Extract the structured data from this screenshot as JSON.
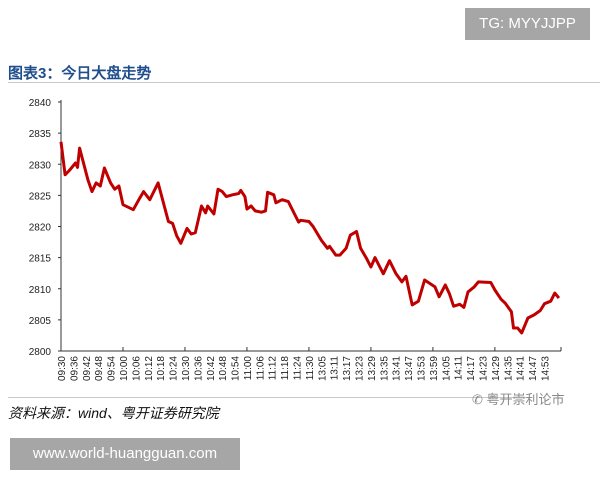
{
  "badge_top": "TG: MYYJJPP",
  "badge_bottom": "www.world-huangguan.com",
  "source": "资料来源：wind、粤开证券研究院",
  "watermark": "粤开崇利论市",
  "watermark_icon": "wechat-icon",
  "chart_data": {
    "type": "line",
    "title": "图表3：今日大盘走势",
    "xlabel": "",
    "ylabel": "",
    "ylim": [
      2800,
      2840
    ],
    "yticks": [
      2800,
      2805,
      2810,
      2815,
      2820,
      2825,
      2830,
      2835,
      2840
    ],
    "grid": false,
    "line_color": "#c00000",
    "title_color": "#1f4e8c",
    "xtick_labels": [
      "09:30",
      "09:36",
      "09:42",
      "09:48",
      "09:54",
      "10:00",
      "10:06",
      "10:12",
      "10:18",
      "10:24",
      "10:30",
      "10:36",
      "10:42",
      "10:48",
      "10:54",
      "11:00",
      "11:06",
      "11:12",
      "11:18",
      "11:24",
      "11:30",
      "13:05",
      "13:11",
      "13:17",
      "13:23",
      "13:29",
      "13:35",
      "13:41",
      "13:47",
      "13:53",
      "13:59",
      "14:05",
      "14:11",
      "14:17",
      "14:23",
      "14:29",
      "14:35",
      "14:41",
      "14:47",
      "14:53"
    ],
    "series": [
      {
        "x": [
          "09:30",
          "09:32",
          "09:34",
          "09:37",
          "09:38",
          "09:39",
          "09:43",
          "09:45",
          "09:47",
          "09:49",
          "09:51",
          "09:54",
          "09:56",
          "09:58",
          "10:00",
          "10:05",
          "10:08",
          "10:10",
          "10:13",
          "10:17",
          "10:22",
          "10:24",
          "10:26",
          "10:28",
          "10:31",
          "10:33",
          "10:35",
          "10:38",
          "10:40",
          "10:41",
          "10:44",
          "10:46",
          "10:48",
          "10:50",
          "10:53",
          "10:56",
          "10:57",
          "10:59",
          "11:00",
          "11:02",
          "11:04",
          "11:07",
          "11:09",
          "11:10",
          "11:13",
          "11:14",
          "11:17",
          "11:20",
          "11:23",
          "11:25",
          "11:26",
          "11:30",
          "13:01",
          "13:05",
          "13:08",
          "13:09",
          "13:12",
          "13:14",
          "13:17",
          "13:19",
          "13:22",
          "13:24",
          "13:27",
          "13:29",
          "13:31",
          "13:35",
          "13:38",
          "13:41",
          "13:44",
          "13:46",
          "13:49",
          "13:52",
          "13:55",
          "14:00",
          "14:02",
          "14:05",
          "14:07",
          "14:09",
          "14:12",
          "14:14",
          "14:16",
          "14:19",
          "14:21",
          "14:27",
          "14:29",
          "14:32",
          "14:34",
          "14:37",
          "14:38",
          "14:40",
          "14:42",
          "14:45",
          "14:48",
          "14:51",
          "14:53",
          "14:56",
          "14:58",
          "15:00"
        ],
        "values": [
          2833.6,
          2828.3,
          2829,
          2830.2,
          2829.5,
          2832.6,
          2827.5,
          2825.6,
          2827,
          2826.5,
          2829.4,
          2827,
          2826,
          2826.5,
          2823.5,
          2822.7,
          2824.5,
          2825.6,
          2824.3,
          2827,
          2820.8,
          2820.5,
          2818.5,
          2817.3,
          2819.7,
          2818.8,
          2819,
          2823.3,
          2822.2,
          2823.3,
          2822,
          2826,
          2825.6,
          2824.8,
          2825.1,
          2825.3,
          2825.8,
          2824.8,
          2822.8,
          2823.3,
          2822.5,
          2822.3,
          2822.5,
          2825.5,
          2825.1,
          2823.8,
          2824.3,
          2824,
          2822,
          2820.7,
          2821,
          2820.8,
          2820,
          2817.8,
          2816.5,
          2816.8,
          2815.4,
          2815.4,
          2816.5,
          2818.6,
          2819.2,
          2816.5,
          2814.8,
          2813.5,
          2815,
          2812.4,
          2814.5,
          2812.5,
          2811.1,
          2812,
          2807.4,
          2808,
          2811.4,
          2810.3,
          2808.7,
          2810.6,
          2809.2,
          2807.2,
          2807.5,
          2807,
          2809.5,
          2810.3,
          2811.1,
          2811,
          2809.8,
          2808.3,
          2807.7,
          2806.3,
          2803.7,
          2803.7,
          2802.9,
          2805.3,
          2805.8,
          2806.5,
          2807.6,
          2808,
          2809.3,
          2808.5
        ]
      }
    ]
  }
}
